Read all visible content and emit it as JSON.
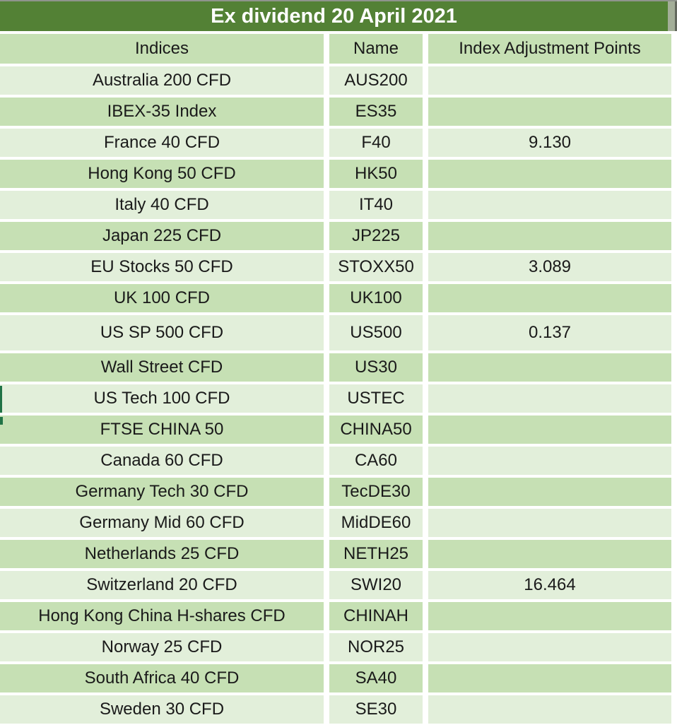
{
  "title": "Ex dividend 20 April 2021",
  "table": {
    "columns": [
      "Indices",
      "Name",
      "Index Adjustment Points"
    ],
    "rows": [
      {
        "indices": "Australia 200 CFD",
        "name": "AUS200",
        "points": ""
      },
      {
        "indices": "IBEX-35 Index",
        "name": "ES35",
        "points": ""
      },
      {
        "indices": "France 40 CFD",
        "name": "F40",
        "points": "9.130"
      },
      {
        "indices": "Hong Kong 50 CFD",
        "name": "HK50",
        "points": ""
      },
      {
        "indices": "Italy 40 CFD",
        "name": "IT40",
        "points": ""
      },
      {
        "indices": "Japan 225 CFD",
        "name": "JP225",
        "points": ""
      },
      {
        "indices": "EU Stocks 50 CFD",
        "name": "STOXX50",
        "points": "3.089"
      },
      {
        "indices": "UK 100 CFD",
        "name": "UK100",
        "points": ""
      },
      {
        "indices": "US SP 500 CFD",
        "name": "US500",
        "points": "0.137"
      },
      {
        "indices": "Wall Street CFD",
        "name": "US30",
        "points": ""
      },
      {
        "indices": "US Tech 100 CFD",
        "name": "USTEC",
        "points": ""
      },
      {
        "indices": "FTSE CHINA 50",
        "name": "CHINA50",
        "points": ""
      },
      {
        "indices": "Canada 60 CFD",
        "name": "CA60",
        "points": ""
      },
      {
        "indices": "Germany Tech 30 CFD",
        "name": "TecDE30",
        "points": ""
      },
      {
        "indices": "Germany Mid 60 CFD",
        "name": "MidDE60",
        "points": ""
      },
      {
        "indices": "Netherlands 25 CFD",
        "name": "NETH25",
        "points": ""
      },
      {
        "indices": "Switzerland 20 CFD",
        "name": "SWI20",
        "points": "16.464"
      },
      {
        "indices": "Hong Kong China H-shares CFD",
        "name": "CHINAH",
        "points": ""
      },
      {
        "indices": "Norway 25 CFD",
        "name": "NOR25",
        "points": ""
      },
      {
        "indices": "South Africa 40 CFD",
        "name": "SA40",
        "points": ""
      },
      {
        "indices": "Sweden 30 CFD",
        "name": "SE30",
        "points": ""
      }
    ]
  },
  "colors": {
    "title_bar": "#538135",
    "title_text": "#FFFFFF",
    "header_fill": "#C6E0B4",
    "row_light": "#E2EFDA",
    "row_dark": "#C6E0B4",
    "gap": "#FFFFFF",
    "text": "#1A1A1A",
    "accent_edge_bar": "#217346",
    "window_edge": "#A3AE98"
  }
}
